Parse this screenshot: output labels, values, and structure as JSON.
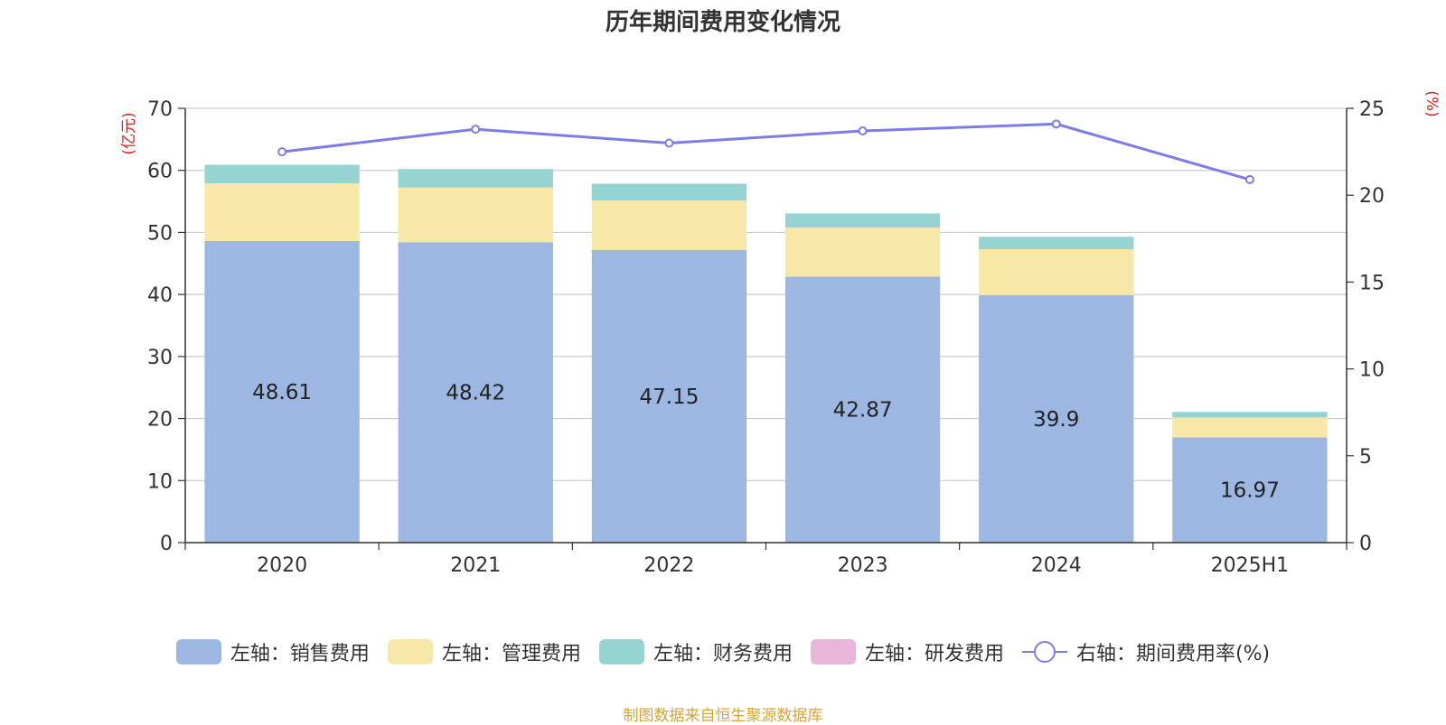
{
  "chart_data": {
    "type": "bar",
    "title": "历年期间费用变化情况",
    "categories": [
      "2020",
      "2021",
      "2022",
      "2023",
      "2024",
      "2025H1"
    ],
    "series": [
      {
        "name": "左轴：销售费用",
        "axis": "left",
        "color": "#9bb7e2",
        "values": [
          48.61,
          48.42,
          47.15,
          42.87,
          39.9,
          16.97
        ],
        "labels": [
          "48.61",
          "48.42",
          "47.15",
          "42.87",
          "39.9",
          "16.97"
        ]
      },
      {
        "name": "左轴：管理费用",
        "axis": "left",
        "color": "#f8e8a8",
        "values": [
          9.3,
          8.8,
          8.0,
          7.9,
          7.4,
          3.2
        ]
      },
      {
        "name": "左轴：财务费用",
        "axis": "left",
        "color": "#96d4d4",
        "values": [
          3.0,
          3.0,
          2.7,
          2.3,
          2.0,
          0.9
        ]
      },
      {
        "name": "左轴：研发费用",
        "axis": "left",
        "color": "#e8b6d8",
        "values": [
          0,
          0,
          0,
          0,
          0,
          0
        ]
      },
      {
        "name": "右轴：期间费用率(%)",
        "axis": "right",
        "type": "line",
        "color": "#7b7de8",
        "values": [
          22.5,
          23.8,
          23.0,
          23.7,
          24.1,
          20.9
        ]
      }
    ],
    "y_left": {
      "label": "(亿元)",
      "ylim": [
        0,
        70
      ],
      "ticks": [
        "0",
        "10",
        "20",
        "30",
        "40",
        "50",
        "60",
        "70"
      ]
    },
    "y_right": {
      "label": "(%)",
      "ylim": [
        0,
        25
      ],
      "ticks": [
        "0",
        "5",
        "10",
        "15",
        "20",
        "25"
      ]
    },
    "grid": true,
    "legend_position": "bottom"
  },
  "source": "制图数据来自恒生聚源数据库"
}
